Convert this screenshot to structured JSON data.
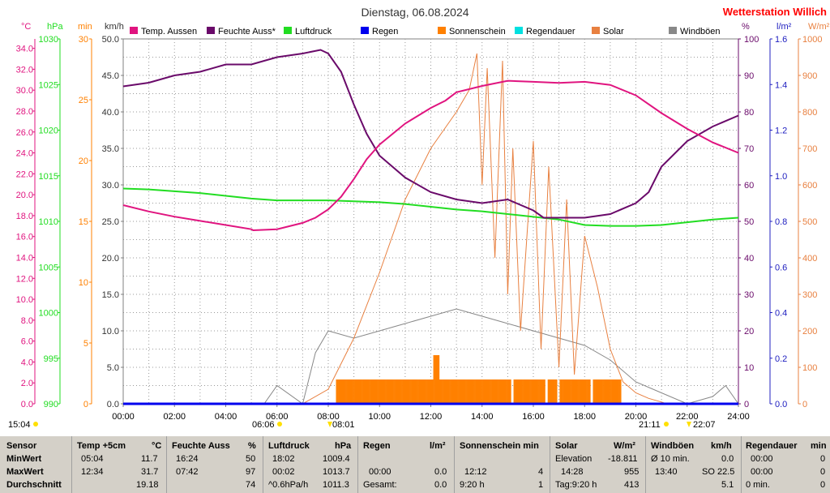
{
  "header": {
    "date_title": "Dienstag, 06.08.2024",
    "station": "Wetterstation Willich"
  },
  "colors": {
    "temp": "#e0147f",
    "humidity": "#6a0a6a",
    "pressure": "#22dd22",
    "rain": "#0000ee",
    "sunshine": "#ff8000",
    "rain_duration": "#00e0e0",
    "solar": "#e88040",
    "gusts": "#888888",
    "grid": "#9a9a9a",
    "station": "#ff0000"
  },
  "axes": {
    "temp": {
      "unit": "°C",
      "ticks": [
        "34.0",
        "32.0",
        "30.0",
        "28.0",
        "26.0",
        "24.0",
        "22.0",
        "20.0",
        "18.0",
        "16.0",
        "14.0",
        "12.0",
        "10.0",
        "8.0",
        "6.0",
        "4.0",
        "2.0",
        "0.0"
      ],
      "min": 0,
      "max": 34.9
    },
    "pressure": {
      "unit": "hPa",
      "ticks": [
        "1030",
        "1025",
        "1020",
        "1015",
        "1010",
        "1005",
        "1000",
        "995",
        "990"
      ],
      "min": 990,
      "max": 1030
    },
    "sunshine_min": {
      "unit": "min",
      "ticks": [
        "30",
        "25",
        "20",
        "15",
        "10",
        "5",
        "0"
      ],
      "min": 0,
      "max": 30
    },
    "wind_kmh": {
      "unit": "km/h",
      "ticks": [
        "50.0",
        "45.0",
        "40.0",
        "35.0",
        "30.0",
        "25.0",
        "20.0",
        "15.0",
        "10.0",
        "5.0",
        "0.0"
      ],
      "min": 0,
      "max": 50
    },
    "humidity": {
      "unit": "%",
      "ticks": [
        "100",
        "90",
        "80",
        "70",
        "60",
        "50",
        "40",
        "30",
        "20",
        "10",
        "0"
      ],
      "min": 0,
      "max": 100
    },
    "rain": {
      "unit": "l/m²",
      "ticks": [
        "1.6",
        "1.4",
        "1.2",
        "1.0",
        "0.8",
        "0.6",
        "0.4",
        "0.2",
        "0.0"
      ],
      "min": 0,
      "max": 1.6
    },
    "solar": {
      "unit": "W/m²",
      "ticks": [
        "1000",
        "900",
        "800",
        "700",
        "600",
        "500",
        "400",
        "300",
        "200",
        "100",
        "0"
      ],
      "min": 0,
      "max": 1000
    },
    "time_ticks": [
      "00:00",
      "02:00",
      "04:00",
      "06:00",
      "08:00",
      "10:00",
      "12:00",
      "14:00",
      "16:00",
      "18:00",
      "20:00",
      "22:00",
      "24:00"
    ]
  },
  "legend": [
    {
      "label": "Temp. Aussen",
      "color": "#e0147f"
    },
    {
      "label": "Feuchte Auss*",
      "color": "#6a0a6a"
    },
    {
      "label": "Luftdruck",
      "color": "#22dd22"
    },
    {
      "label": "Regen",
      "color": "#0000ee"
    },
    {
      "label": "Sonnenschein",
      "color": "#ff8000"
    },
    {
      "label": "Regendauer",
      "color": "#00e0e0"
    },
    {
      "label": "Solar",
      "color": "#e88040"
    },
    {
      "label": "Windböen",
      "color": "#888888"
    }
  ],
  "sun_markers": {
    "moonrise": "15:04",
    "sunrise": "06:06",
    "civil_start": "08:01",
    "sunset": "21:11",
    "moonset": "22:07"
  },
  "chart_data": {
    "type": "line",
    "x_unit": "hours",
    "xlim": [
      0,
      24
    ],
    "series": [
      {
        "name": "Temp. Aussen",
        "axis": "temp",
        "x": [
          0,
          1,
          2,
          3,
          4,
          5,
          5.07,
          6,
          7,
          7.5,
          8,
          8.5,
          9,
          9.5,
          10,
          11,
          12,
          12.57,
          13,
          14,
          15,
          16,
          17,
          18,
          19,
          20,
          21,
          22,
          23,
          24
        ],
        "y": [
          19.0,
          18.4,
          17.9,
          17.5,
          17.1,
          16.7,
          16.6,
          16.7,
          17.3,
          17.8,
          18.6,
          19.8,
          21.5,
          23.4,
          24.8,
          26.8,
          28.3,
          29.0,
          29.8,
          30.4,
          30.9,
          30.8,
          30.7,
          30.8,
          30.5,
          29.5,
          27.8,
          26.3,
          25.0,
          24.0
        ]
      },
      {
        "name": "Feuchte Auss*",
        "axis": "humidity",
        "x": [
          0,
          1,
          2,
          3,
          4,
          5,
          6,
          7,
          7.7,
          8,
          8.5,
          9,
          9.5,
          10,
          11,
          12,
          13,
          14,
          15,
          16,
          16.4,
          17,
          18,
          19,
          20,
          20.5,
          21,
          22,
          23,
          24
        ],
        "y": [
          87,
          88,
          90,
          91,
          93,
          93,
          95,
          96,
          97,
          96,
          91,
          82,
          74,
          68,
          62,
          58,
          56,
          55,
          56,
          53,
          51,
          51,
          51,
          52,
          55,
          58,
          65,
          72,
          76,
          79
        ]
      },
      {
        "name": "Luftdruck",
        "axis": "pressure",
        "x": [
          0,
          1,
          2,
          3,
          4,
          5,
          6,
          7,
          8,
          9,
          10,
          11,
          12,
          13,
          14,
          15,
          16,
          17,
          18,
          19,
          20,
          21,
          22,
          23,
          24
        ],
        "y": [
          1013.6,
          1013.5,
          1013.3,
          1013.1,
          1012.8,
          1012.5,
          1012.3,
          1012.3,
          1012.3,
          1012.2,
          1012.1,
          1011.9,
          1011.6,
          1011.3,
          1011.1,
          1010.8,
          1010.5,
          1010.2,
          1009.6,
          1009.5,
          1009.5,
          1009.6,
          1009.9,
          1010.2,
          1010.4
        ]
      },
      {
        "name": "Regen",
        "axis": "rain",
        "x": [
          0,
          24
        ],
        "y": [
          0.0,
          0.0
        ]
      },
      {
        "name": "Solar",
        "axis": "solar",
        "x": [
          0,
          6,
          7,
          8,
          9,
          10,
          11,
          12,
          13,
          13.5,
          13.8,
          14,
          14.2,
          14.5,
          14.8,
          15,
          15.2,
          15.5,
          16,
          16.3,
          16.6,
          17,
          17.3,
          17.6,
          18,
          18.5,
          19,
          19.5,
          20,
          20.5,
          21,
          21.2,
          24
        ],
        "y": [
          0,
          0,
          0,
          40,
          180,
          360,
          560,
          700,
          800,
          860,
          960,
          600,
          920,
          400,
          940,
          300,
          700,
          200,
          720,
          150,
          650,
          100,
          560,
          80,
          460,
          320,
          150,
          60,
          30,
          15,
          5,
          0,
          0
        ]
      },
      {
        "name": "Windböen",
        "axis": "wind_kmh",
        "x": [
          0,
          5.5,
          6,
          7,
          7.5,
          8,
          9,
          10,
          11,
          12,
          13,
          14,
          15,
          16,
          17,
          18,
          19,
          20,
          21,
          22,
          23,
          23.5,
          24
        ],
        "y": [
          0,
          0,
          2.5,
          0,
          7,
          10,
          9,
          10,
          11,
          12,
          13,
          12,
          11,
          10,
          9,
          8,
          6,
          3,
          1.5,
          0,
          1,
          2.5,
          0
        ]
      }
    ],
    "sunshine_bars": {
      "axis": "sunshine_min",
      "start_hour": 8.3,
      "end_hour": 19.4,
      "value_min": 2,
      "peak_hour": 12.2,
      "peak_min": 4
    }
  },
  "footer": {
    "head": {
      "sensor": "Sensor",
      "temp": "Temp +5cm",
      "temp_unit": "°C",
      "hum": "Feuchte Auss",
      "hum_unit": "%",
      "press": "Luftdruck",
      "press_unit": "hPa",
      "rain": "Regen",
      "rain_unit": "l/m²",
      "sun": "Sonnenschein min",
      "solar": "Solar",
      "solar_unit": "W/m²",
      "wind": "Windböen",
      "wind_unit": "km/h",
      "rdur": "Regendauer",
      "rdur_unit": "min"
    },
    "rows": {
      "min": "MinWert",
      "max": "MaxWert",
      "avg": "Durchschnitt"
    },
    "temp": {
      "min_time": "05:04",
      "min_val": "11.7",
      "max_time": "12:34",
      "max_val": "31.7",
      "avg": "19.18"
    },
    "hum": {
      "min_time": "16:24",
      "min_val": "50",
      "max_time": "07:42",
      "max_val": "97",
      "avg": "74"
    },
    "press": {
      "min_time": "18:02",
      "min_val": "1009.4",
      "max_time": "00:02",
      "max_val": "1013.7",
      "avg_label": "^0.6hPa/h",
      "avg": "1011.3"
    },
    "rain": {
      "max_time": "00:00",
      "max_val": "0.0",
      "avg_label": "Gesamt:",
      "avg": "0.0"
    },
    "sun": {
      "max_time": "12:12",
      "max_val": "4",
      "avg_label": "9:20 h",
      "avg": "1"
    },
    "solar": {
      "min_label": "Elevation",
      "min_val": "-18.811",
      "max_time": "14:28",
      "max_val": "955",
      "avg_label": "Tag:9:20 h",
      "avg": "413"
    },
    "wind": {
      "min_label": "Ø 10 min.",
      "min_val": "0.0",
      "max_time": "13:40",
      "max_val": "SO 22.5",
      "avg": "5.1"
    },
    "rdur": {
      "min_time": "00:00",
      "min_val": "0",
      "max_time": "00:00",
      "max_val": "0",
      "avg_label": "0 min.",
      "avg": "0"
    }
  }
}
